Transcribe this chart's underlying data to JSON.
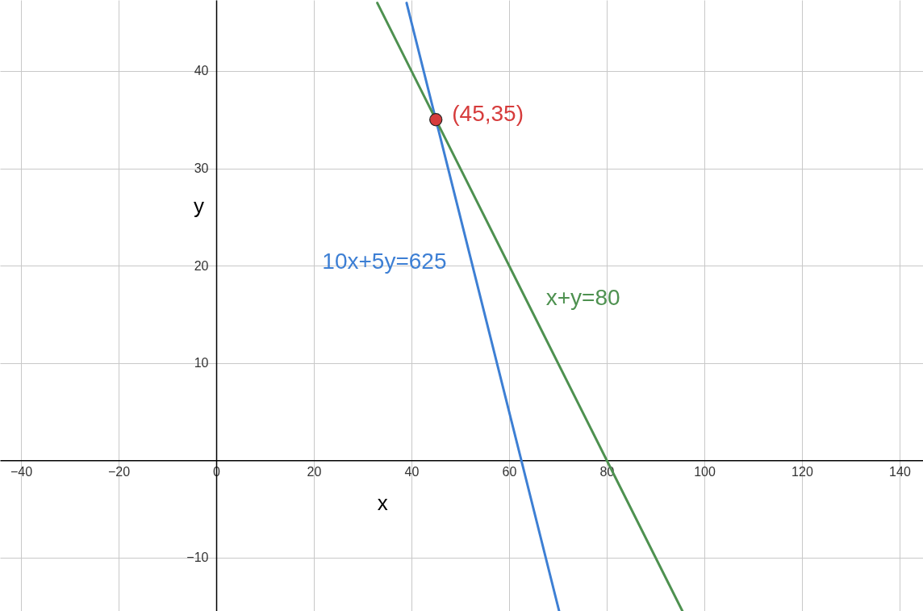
{
  "chart_data": {
    "type": "line",
    "xlabel": "x",
    "ylabel": "y",
    "xlim": [
      -44.3,
      144.8
    ],
    "ylim": [
      -15.5,
      47.3
    ],
    "xticks": [
      {
        "value": -40,
        "label": "−40"
      },
      {
        "value": -20,
        "label": "−20"
      },
      0,
      20,
      40,
      60,
      80,
      100,
      120,
      140
    ],
    "yticks": [
      {
        "value": -10,
        "label": "−10"
      },
      10,
      20,
      30,
      40
    ],
    "grid": true,
    "series": [
      {
        "name": "10x+5y=625",
        "color": "#3d7fd4",
        "x": [
          39,
          70.25
        ],
        "values": [
          47,
          -15.5
        ]
      },
      {
        "name": "x+y=80",
        "color": "#4e9150",
        "x": [
          33,
          95.5
        ],
        "values": [
          47,
          -15.5
        ]
      },
      {
        "type": "scatter",
        "color": "#d63c3c",
        "marker": "circle",
        "x": [
          45
        ],
        "values": [
          35
        ]
      }
    ],
    "annotations": [
      {
        "text": "(45,35)",
        "x": 45,
        "y": 35
      }
    ]
  }
}
